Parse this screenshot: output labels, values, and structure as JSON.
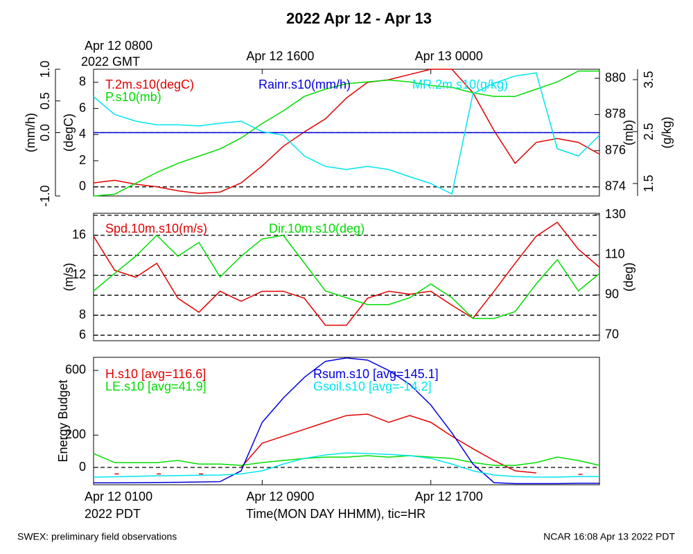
{
  "title": "2022 Apr 12 - Apr 13",
  "footer_left": "SWEX: preliminary field observations",
  "footer_right": "NCAR 16:08 Apr 13 2022 PDT",
  "chart_data": [
    {
      "type": "line",
      "xlim": [
        0,
        24
      ],
      "x": [
        0,
        1,
        2,
        3,
        4,
        5,
        6,
        7,
        8,
        9,
        10,
        11,
        12,
        13,
        14,
        15,
        16,
        17,
        18,
        19,
        20,
        21,
        22,
        23,
        24
      ],
      "x2ticks": [
        {
          "value": 0,
          "label": "Apr 12 0800"
        },
        {
          "value": 8,
          "label": "Apr 12 1600"
        },
        {
          "value": 16,
          "label": "Apr 13 0000"
        }
      ],
      "x2_sublabel": "2022 GMT",
      "zero_line": true,
      "axes": [
        {
          "label": "(mm/h)",
          "ylim": [
            -1,
            1
          ],
          "yticks": [
            {
              "value": -1,
              "label": "-1.0"
            },
            {
              "value": 0,
              "label": "0.0"
            },
            {
              "value": 0.5,
              "label": "0.5"
            },
            {
              "value": 1,
              "label": "1.0"
            }
          ]
        },
        {
          "label": "(degC)",
          "ylim": [
            -0.7,
            9.0
          ],
          "yticks": [
            0,
            2,
            4,
            6,
            8
          ]
        },
        {
          "label": "(mb)",
          "ylim": [
            873.5,
            880.5
          ],
          "yticks": [
            874,
            876,
            878,
            880
          ]
        },
        {
          "label": "(g/kg)",
          "ylim": [
            1.26,
            3.7
          ],
          "yticks": [
            1.5,
            2.5,
            3.5
          ]
        }
      ],
      "series": [
        {
          "name": "T.2m.s10(degC)",
          "color": "#e00000",
          "axis": 1,
          "values": [
            0.3,
            0.5,
            0.2,
            0,
            -0.3,
            -0.5,
            -0.4,
            0.3,
            1.6,
            3.1,
            4.2,
            5.2,
            6.8,
            8,
            8.2,
            8.6,
            9,
            9,
            7.2,
            4.3,
            1.8,
            3.4,
            3.7,
            3.4,
            2.5
          ]
        },
        {
          "name": "P.s10(mb)",
          "color": "#00dd00",
          "axis": 2,
          "values": [
            873.5,
            873.6,
            874.2,
            874.8,
            875.3,
            875.7,
            876.1,
            876.7,
            877.5,
            878.2,
            879,
            879.4,
            879.7,
            879.8,
            879.9,
            879.8,
            879.6,
            879.5,
            879.2,
            879,
            879,
            879.4,
            879.8,
            880.4,
            880.4
          ]
        },
        {
          "name": "Rainr.s10(mm/h)",
          "color": "#0000dd",
          "axis": 0,
          "values": [
            0,
            0,
            0,
            0,
            0,
            0,
            0,
            0,
            0,
            0,
            0,
            0,
            0,
            0,
            0,
            0,
            0,
            0,
            0,
            0,
            0,
            0,
            0,
            0,
            0
          ]
        },
        {
          "name": "MR.2m.s10(g/kg)",
          "color": "#00e5ee",
          "axis": 3,
          "values": [
            3.17,
            2.83,
            2.7,
            2.63,
            2.63,
            2.61,
            2.66,
            2.7,
            2.5,
            2.43,
            2.03,
            1.83,
            1.77,
            1.83,
            1.77,
            1.63,
            1.5,
            1.3,
            3.23,
            3.43,
            3.57,
            3.63,
            2.17,
            2.03,
            2.43
          ]
        }
      ]
    },
    {
      "type": "line",
      "xlim": [
        0,
        24
      ],
      "x": [
        0,
        1,
        2,
        3,
        4,
        5,
        6,
        7,
        8,
        9,
        10,
        11,
        12,
        13,
        14,
        15,
        16,
        17,
        18,
        19,
        20,
        21,
        22,
        23,
        24
      ],
      "gridlines": [
        6,
        8,
        10,
        12,
        14,
        16,
        18
      ],
      "axes": [
        {
          "label": "(m/s)",
          "ylim": [
            5.45,
            18.2
          ],
          "yticks": [
            6,
            8,
            12,
            16
          ]
        },
        {
          "label": "(deg)",
          "ylim": [
            67.2,
            130.7
          ],
          "yticks": [
            70,
            90,
            110,
            130
          ]
        }
      ],
      "series": [
        {
          "name": "Spd.10m.s10(m/s)",
          "color": "#e00000",
          "axis": 0,
          "values": [
            15.9,
            12.5,
            11.8,
            13.2,
            9.7,
            8.3,
            10.4,
            9.4,
            10.4,
            10.4,
            9.7,
            7,
            7,
            9.7,
            10.4,
            10.1,
            10.4,
            9,
            7.7,
            10.4,
            13.2,
            15.9,
            17.3,
            14.6,
            12.8
          ]
        },
        {
          "name": "Dir.10m.s10(deg)",
          "color": "#00dd00",
          "axis": 1,
          "values": [
            92,
            100.7,
            109.3,
            119.7,
            109.3,
            116.2,
            99,
            109.3,
            117.9,
            119.7,
            105.9,
            92,
            88.6,
            85.2,
            85.2,
            88.6,
            95.5,
            88.6,
            78.3,
            78.3,
            81.7,
            95.5,
            107.6,
            92,
            100.7
          ]
        }
      ]
    },
    {
      "type": "line",
      "xlim": [
        0,
        24
      ],
      "x": [
        0,
        1,
        2,
        3,
        4,
        5,
        6,
        7,
        8,
        9,
        10,
        11,
        12,
        13,
        14,
        15,
        16,
        17,
        18,
        19,
        20,
        21,
        22,
        23,
        24
      ],
      "xticks": [
        {
          "value": 0,
          "label": "Apr 12 0100"
        },
        {
          "value": 8,
          "label": "Apr 12 0900"
        },
        {
          "value": 16,
          "label": "Apr 12 1700"
        }
      ],
      "x_sublabel": "2022 PDT",
      "xlabel": "Time(MON DAY HHMM), tic=HR",
      "zero_line": true,
      "axes": [
        {
          "label": "Energy Budget",
          "ylim": [
            -107,
            681
          ],
          "yticks": [
            0,
            200,
            600
          ]
        }
      ],
      "series": [
        {
          "name": "H.s10 [avg=116.6]",
          "color": "#e00000",
          "axis": 0,
          "values": [
            null,
            -40,
            null,
            -40,
            null,
            -40,
            null,
            0,
            150,
            193,
            236,
            279,
            321,
            330,
            279,
            321,
            279,
            193,
            116,
            43,
            -21,
            -34,
            null,
            -43,
            null
          ]
        },
        {
          "name": "LE.s10 [avg=41.9]",
          "color": "#00dd00",
          "axis": 0,
          "values": [
            86,
            30,
            30,
            30,
            43,
            21,
            21,
            13,
            30,
            43,
            56,
            64,
            64,
            73,
            64,
            73,
            64,
            56,
            30,
            13,
            13,
            30,
            64,
            43,
            13
          ]
        },
        {
          "name": "Rsum.s10 [avg=145.1]",
          "color": "#0000dd",
          "axis": 0,
          "values": [
            -95,
            -95,
            -94,
            -93,
            -92,
            -90,
            -88,
            -21,
            279,
            429,
            557,
            656,
            677,
            664,
            600,
            514,
            386,
            214,
            21,
            -94,
            -100,
            -100,
            -100,
            -98,
            -98
          ]
        },
        {
          "name": "Gsoil.s10 [avg=-14.2]",
          "color": "#00e5ee",
          "axis": 0,
          "values": [
            -60,
            -58,
            -55,
            -52,
            -50,
            -48,
            -47,
            -40,
            -21,
            21,
            56,
            77,
            90,
            86,
            81,
            73,
            56,
            21,
            -21,
            -47,
            -56,
            -60,
            -60,
            -56,
            -56
          ]
        }
      ]
    }
  ]
}
